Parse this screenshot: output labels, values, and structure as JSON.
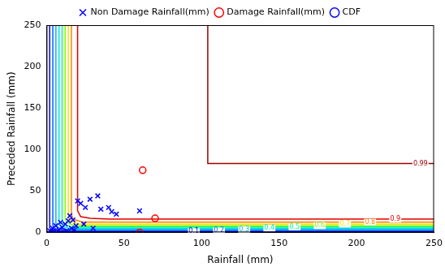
{
  "chart_data": {
    "type": "scatter",
    "xlabel": "Rainfall (mm)",
    "ylabel": "Preceded Rainfall (mm)",
    "xlim": [
      0,
      250
    ],
    "ylim": [
      0,
      250
    ],
    "xticks": [
      0,
      50,
      100,
      150,
      200,
      250
    ],
    "yticks": [
      0,
      50,
      100,
      150,
      200,
      250
    ],
    "grid": false,
    "legend": "top",
    "contours": {
      "name": "CDF",
      "levels": [
        {
          "level": 0.1,
          "color": "#0000ff",
          "x": [
            2,
            2,
            3,
            6,
            250
          ],
          "y": [
            250,
            6,
            2,
            1,
            1
          ]
        },
        {
          "level": 0.2,
          "color": "#0060ff",
          "x": [
            4,
            4,
            5,
            9,
            250
          ],
          "y": [
            250,
            9,
            4,
            2,
            2
          ]
        },
        {
          "level": 0.3,
          "color": "#00b0ff",
          "x": [
            6,
            6,
            7,
            12,
            250
          ],
          "y": [
            250,
            11,
            6,
            3.5,
            3.5
          ]
        },
        {
          "level": 0.4,
          "color": "#00e0e0",
          "x": [
            8,
            8,
            9,
            14,
            250
          ],
          "y": [
            250,
            13,
            8,
            5,
            5
          ]
        },
        {
          "level": 0.5,
          "color": "#00ff80",
          "x": [
            10,
            10,
            11,
            16,
            250
          ],
          "y": [
            250,
            15,
            10,
            6.5,
            6.5
          ]
        },
        {
          "level": 0.6,
          "color": "#80ff00",
          "x": [
            12,
            12,
            13,
            18,
            250
          ],
          "y": [
            250,
            17,
            12,
            8,
            8
          ]
        },
        {
          "level": 0.7,
          "color": "#ffe000",
          "x": [
            14,
            14,
            15,
            20,
            250
          ],
          "y": [
            250,
            19,
            14,
            10,
            10
          ]
        },
        {
          "level": 0.8,
          "color": "#ff8000",
          "x": [
            16,
            16,
            17,
            23,
            250
          ],
          "y": [
            250,
            22,
            16,
            12.5,
            12.5
          ]
        },
        {
          "level": 0.9,
          "color": "#e00000",
          "x": [
            20,
            20,
            22,
            28,
            40,
            250
          ],
          "y": [
            250,
            26,
            19,
            17,
            16,
            16
          ]
        },
        {
          "level": 0.99,
          "color": "#a00000",
          "x": [
            104,
            104,
            250
          ],
          "y": [
            250,
            83,
            83
          ]
        }
      ]
    },
    "series": [
      {
        "name": "Non Damage Rainfall(mm)",
        "color": "#0000ff",
        "marker": "x",
        "x": [
          2,
          4,
          5,
          6,
          8,
          10,
          12,
          3,
          7,
          9,
          14,
          15,
          16,
          18,
          20,
          22,
          25,
          28,
          33,
          35,
          40,
          42,
          45,
          60,
          30,
          13,
          11,
          1,
          17,
          24,
          19
        ],
        "y": [
          2,
          5,
          1,
          8,
          3,
          6,
          10,
          0,
          2,
          12,
          14,
          20,
          5,
          3,
          38,
          35,
          30,
          40,
          44,
          28,
          30,
          25,
          22,
          26,
          5,
          2,
          1,
          0,
          15,
          10,
          8
        ]
      },
      {
        "name": "Damage Rainfall(mm)",
        "color": "#ff0000",
        "marker": "o",
        "x": [
          62,
          70,
          60
        ],
        "y": [
          75,
          17,
          0
        ]
      }
    ]
  }
}
